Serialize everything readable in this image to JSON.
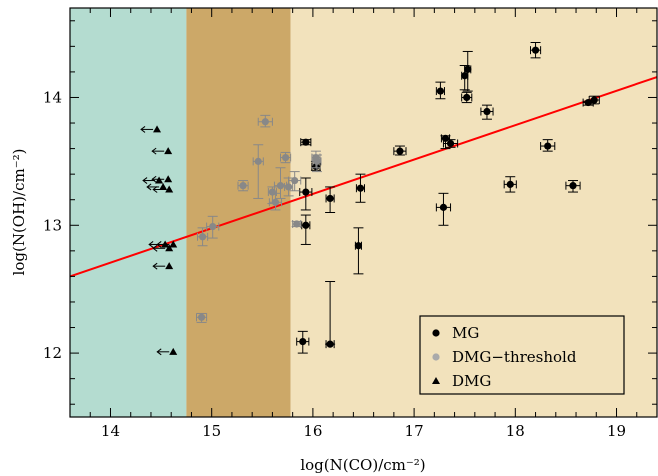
{
  "chart_data": {
    "type": "scatter",
    "xlabel": "log(N(CO)/cm⁻²)",
    "ylabel": "log(N(OH)/cm⁻²)",
    "xlim": [
      13.6,
      19.4
    ],
    "ylim": [
      11.5,
      14.7
    ],
    "xticks": [
      "14",
      "15",
      "16",
      "17",
      "18",
      "19"
    ],
    "yticks": [
      "12",
      "13",
      "14"
    ],
    "regions": [
      {
        "x_range": [
          13.6,
          14.75
        ],
        "color": "#b4dcd0"
      },
      {
        "x_range": [
          14.75,
          15.78
        ],
        "color": "#cca868"
      },
      {
        "x_range": [
          15.78,
          19.4
        ],
        "color": "#f2e2bc"
      }
    ],
    "fit_line": {
      "x": [
        13.6,
        19.4
      ],
      "y": [
        12.6,
        14.16
      ],
      "color": "#ff0000"
    },
    "series": [
      {
        "name": "MG",
        "marker": "circle",
        "color": "#000000",
        "points": [
          {
            "x": 15.9,
            "y": 12.09,
            "ylo": 12.0,
            "yhi": 12.17,
            "xerr": 0.06
          },
          {
            "x": 15.93,
            "y": 13.26,
            "ylo": 13.12,
            "yhi": 13.37,
            "xerr": 0.06
          },
          {
            "x": 15.93,
            "y": 13.65,
            "ylo": 13.63,
            "yhi": 13.67,
            "xerr": 0.05
          },
          {
            "x": 15.93,
            "y": 13.0,
            "ylo": 12.85,
            "yhi": 13.08,
            "xerr": 0.04
          },
          {
            "x": 16.03,
            "y": 13.46,
            "ylo": 13.43,
            "yhi": 13.5,
            "xerr": 0.04
          },
          {
            "x": 16.17,
            "y": 12.07,
            "ylo": 12.07,
            "yhi": 12.56,
            "xerr": 0.04
          },
          {
            "x": 16.17,
            "y": 13.21,
            "ylo": 13.1,
            "yhi": 13.3,
            "xerr": 0.04
          },
          {
            "x": 16.47,
            "y": 13.29,
            "ylo": 13.18,
            "yhi": 13.4,
            "xerr": 0.04
          },
          {
            "x": 16.45,
            "y": 12.84,
            "ylo": 12.62,
            "yhi": 12.98,
            "xerr": 0.03
          },
          {
            "x": 16.86,
            "y": 13.58,
            "ylo": 13.55,
            "yhi": 13.62,
            "xerr": 0.06
          },
          {
            "x": 17.26,
            "y": 14.05,
            "ylo": 13.99,
            "yhi": 14.12,
            "xerr": 0.04
          },
          {
            "x": 17.29,
            "y": 13.14,
            "ylo": 13.0,
            "yhi": 13.25,
            "xerr": 0.07
          },
          {
            "x": 17.31,
            "y": 13.68,
            "ylo": 13.6,
            "yhi": 13.7,
            "xerr": 0.04
          },
          {
            "x": 17.36,
            "y": 13.64,
            "ylo": 13.61,
            "yhi": 13.67,
            "xerr": 0.07
          },
          {
            "x": 17.5,
            "y": 14.17,
            "ylo": 14.06,
            "yhi": 14.25,
            "xerr": 0.03
          },
          {
            "x": 17.53,
            "y": 14.22,
            "ylo": 14.05,
            "yhi": 14.36,
            "xerr": 0.03
          },
          {
            "x": 17.52,
            "y": 14.0,
            "ylo": 13.96,
            "yhi": 14.04,
            "xerr": 0.05
          },
          {
            "x": 17.72,
            "y": 13.89,
            "ylo": 13.83,
            "yhi": 13.94,
            "xerr": 0.06
          },
          {
            "x": 17.95,
            "y": 13.32,
            "ylo": 13.26,
            "yhi": 13.38,
            "xerr": 0.06
          },
          {
            "x": 18.2,
            "y": 14.37,
            "ylo": 14.31,
            "yhi": 14.43,
            "xerr": 0.05
          },
          {
            "x": 18.32,
            "y": 13.62,
            "ylo": 13.58,
            "yhi": 13.67,
            "xerr": 0.07
          },
          {
            "x": 18.57,
            "y": 13.31,
            "ylo": 13.26,
            "yhi": 13.35,
            "xerr": 0.07
          },
          {
            "x": 18.72,
            "y": 13.96,
            "ylo": 13.94,
            "yhi": 13.97,
            "xerr": 0.05
          },
          {
            "x": 18.78,
            "y": 13.98,
            "ylo": 13.95,
            "yhi": 14.01,
            "xerr": 0.05
          }
        ]
      },
      {
        "name": "DMG−threshold",
        "marker": "circle",
        "color": "#888888",
        "points": [
          {
            "x": 14.9,
            "y": 12.28,
            "ylo": 12.24,
            "yhi": 12.31,
            "xerr": 0.05
          },
          {
            "x": 14.91,
            "y": 12.91,
            "ylo": 12.84,
            "yhi": 12.98,
            "xerr": 0.05
          },
          {
            "x": 15.01,
            "y": 12.99,
            "ylo": 12.9,
            "yhi": 13.07,
            "xerr": 0.06
          },
          {
            "x": 15.31,
            "y": 13.31,
            "ylo": 13.27,
            "yhi": 13.35,
            "xerr": 0.05
          },
          {
            "x": 15.46,
            "y": 13.5,
            "ylo": 13.21,
            "yhi": 13.63,
            "xerr": 0.05
          },
          {
            "x": 15.53,
            "y": 13.81,
            "ylo": 13.77,
            "yhi": 13.86,
            "xerr": 0.07
          },
          {
            "x": 15.6,
            "y": 13.26,
            "ylo": 13.17,
            "yhi": 13.3,
            "xerr": 0.04
          },
          {
            "x": 15.63,
            "y": 13.18,
            "ylo": 13.12,
            "yhi": 13.25,
            "xerr": 0.06
          },
          {
            "x": 15.68,
            "y": 13.31,
            "ylo": 13.21,
            "yhi": 13.45,
            "xerr": 0.06
          },
          {
            "x": 15.73,
            "y": 13.53,
            "ylo": 13.49,
            "yhi": 13.57,
            "xerr": 0.05
          },
          {
            "x": 15.76,
            "y": 13.3,
            "ylo": 13.23,
            "yhi": 13.37,
            "xerr": 0.04
          },
          {
            "x": 15.82,
            "y": 13.35,
            "ylo": 13.27,
            "yhi": 13.42,
            "xerr": 0.06
          },
          {
            "x": 15.84,
            "y": 13.01,
            "ylo": 12.99,
            "yhi": 13.03,
            "xerr": 0.04
          },
          {
            "x": 16.03,
            "y": 13.53,
            "ylo": 13.45,
            "yhi": 13.58,
            "xerr": 0.04
          },
          {
            "x": 16.04,
            "y": 13.5,
            "ylo": 13.42,
            "yhi": 13.55,
            "xerr": 0.04
          }
        ]
      },
      {
        "name": "DMG",
        "marker": "triangle",
        "color": "#000000",
        "upper_limit_x": true,
        "points": [
          {
            "x": 14.46,
            "y": 13.75
          },
          {
            "x": 14.48,
            "y": 13.35
          },
          {
            "x": 14.52,
            "y": 13.3
          },
          {
            "x": 14.54,
            "y": 12.85
          },
          {
            "x": 14.57,
            "y": 13.58
          },
          {
            "x": 14.57,
            "y": 13.36
          },
          {
            "x": 14.58,
            "y": 12.82
          },
          {
            "x": 14.58,
            "y": 13.28
          },
          {
            "x": 14.58,
            "y": 12.68
          },
          {
            "x": 14.62,
            "y": 12.85
          },
          {
            "x": 14.62,
            "y": 12.01
          }
        ]
      }
    ],
    "legend": {
      "placement": "bottom-right",
      "entries": [
        {
          "label": "MG",
          "marker": "circle",
          "color": "#000000"
        },
        {
          "label": "DMG−threshold",
          "marker": "circle",
          "color": "#aaaaaa"
        },
        {
          "label": "DMG",
          "marker": "triangle",
          "color": "#000000"
        }
      ]
    }
  }
}
